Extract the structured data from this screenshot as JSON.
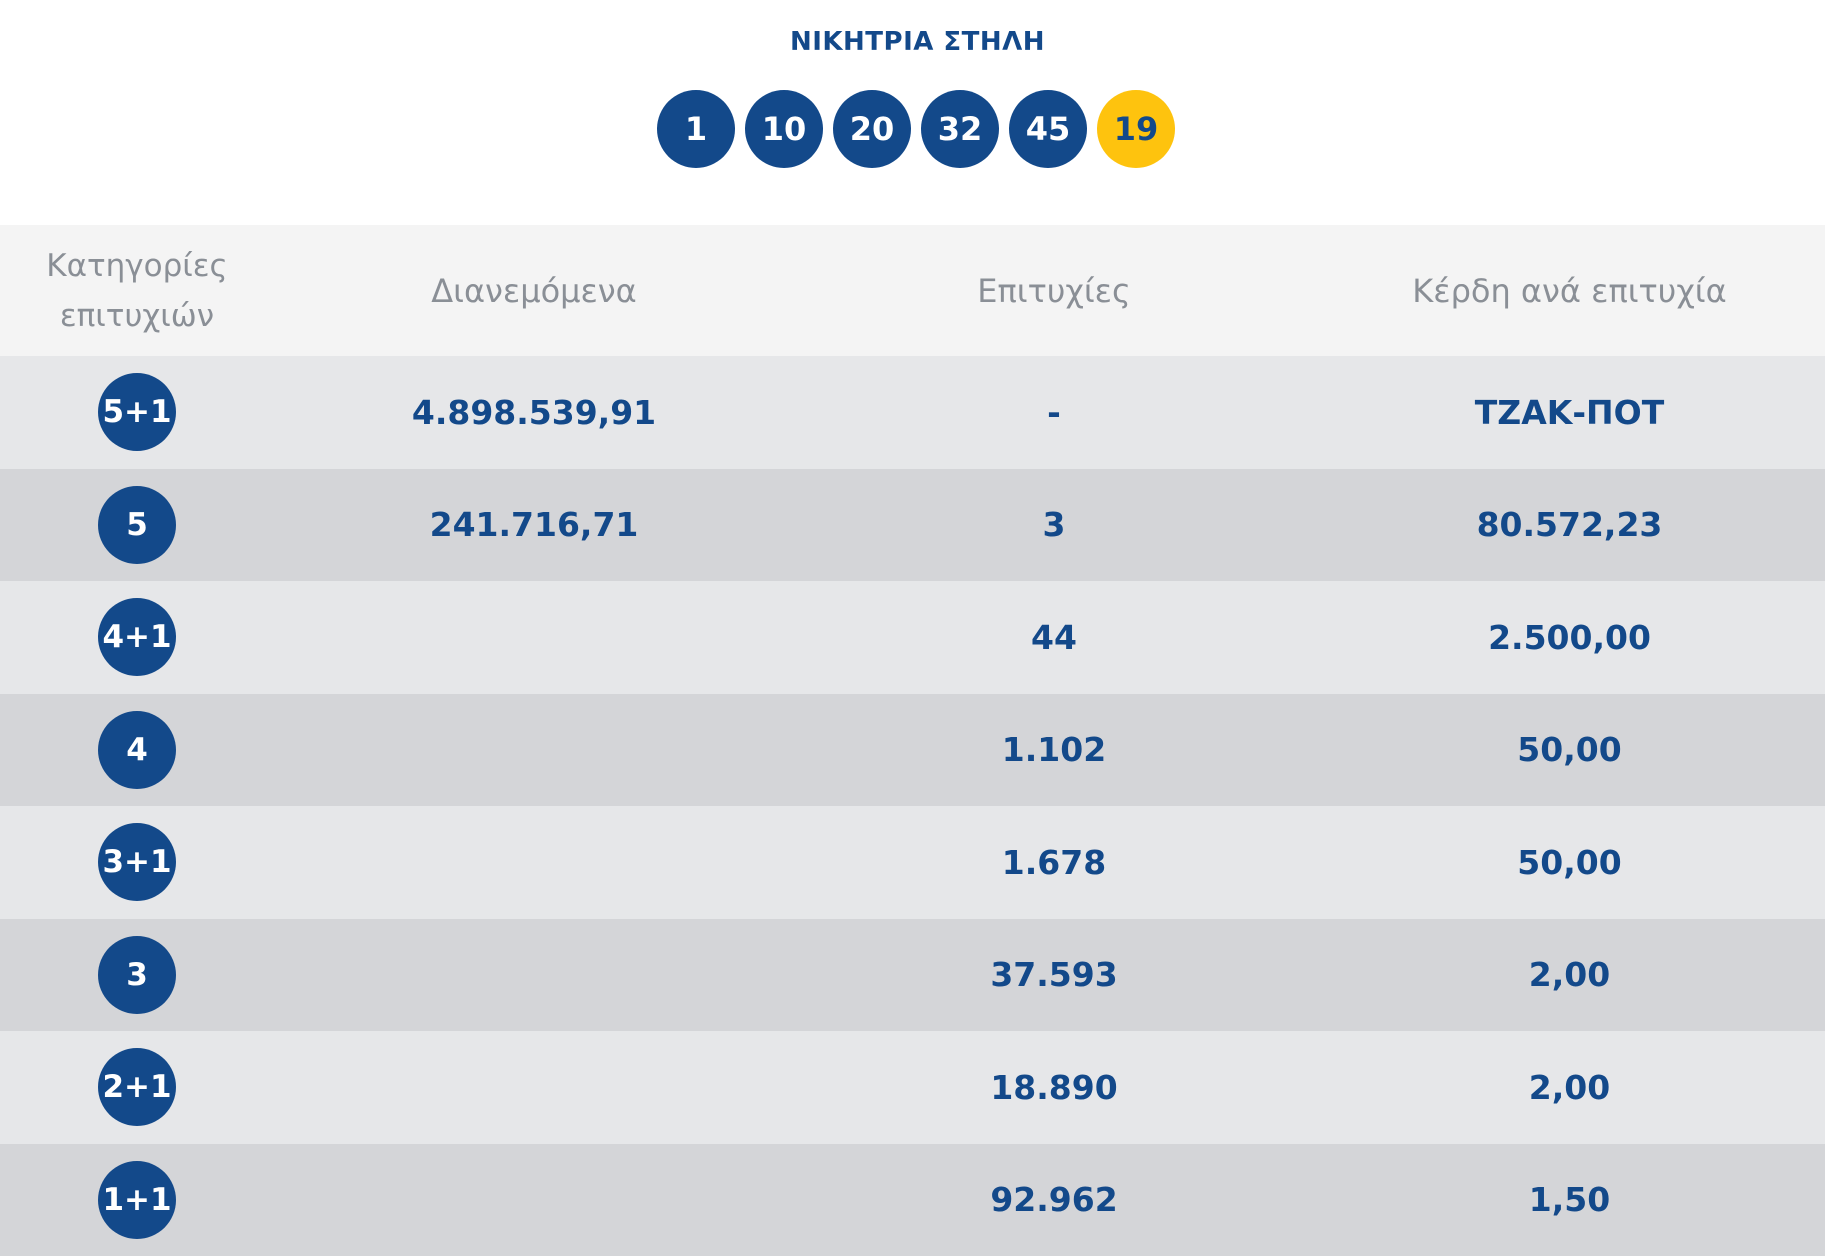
{
  "draw": {
    "title": "ΝΙΚΗΤΡΙΑ ΣΤΗΛΗ",
    "numbers": [
      "1",
      "10",
      "20",
      "32",
      "45"
    ],
    "bonus": "19"
  },
  "table": {
    "headers": {
      "category_line1": "Κατηγορίες",
      "category_line2": "επιτυχιών",
      "distributed": "Διανεμόμενα",
      "winners": "Επιτυχίες",
      "prize": "Κέρδη ανά επιτυχία"
    },
    "rows": [
      {
        "category": "5+1",
        "distributed": "4.898.539,91",
        "winners": "-",
        "prize": "ΤΖΑΚ-ΠΟΤ"
      },
      {
        "category": "5",
        "distributed": "241.716,71",
        "winners": "3",
        "prize": "80.572,23"
      },
      {
        "category": "4+1",
        "distributed": "",
        "winners": "44",
        "prize": "2.500,00"
      },
      {
        "category": "4",
        "distributed": "",
        "winners": "1.102",
        "prize": "50,00"
      },
      {
        "category": "3+1",
        "distributed": "",
        "winners": "1.678",
        "prize": "50,00"
      },
      {
        "category": "3",
        "distributed": "",
        "winners": "37.593",
        "prize": "2,00"
      },
      {
        "category": "2+1",
        "distributed": "",
        "winners": "18.890",
        "prize": "2,00"
      },
      {
        "category": "1+1",
        "distributed": "",
        "winners": "92.962",
        "prize": "1,50"
      }
    ]
  },
  "colors": {
    "primary": "#13498a",
    "bonus": "#fec30e",
    "header_bg": "#f4f4f4",
    "row_light": "#e6e7e9",
    "row_dark": "#d4d5d8",
    "header_text": "#8a8f96"
  }
}
